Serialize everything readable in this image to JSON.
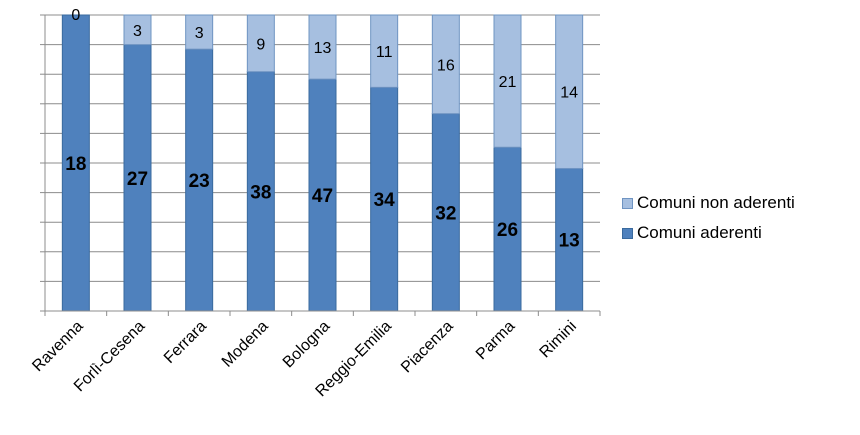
{
  "chart_data": {
    "type": "bar",
    "stacked": "percent",
    "categories": [
      "Ravenna",
      "Forlì-Cesena",
      "Ferrara",
      "Modena",
      "Bologna",
      "Reggio-Emilia",
      "Piacenza",
      "Parma",
      "Rimini"
    ],
    "series": [
      {
        "name": "Comuni aderenti",
        "values": [
          18,
          27,
          23,
          38,
          47,
          34,
          32,
          26,
          13
        ],
        "color": "#4f81bd",
        "stroke": "#3a6a9e"
      },
      {
        "name": "Comuni non aderenti",
        "values": [
          0,
          3,
          3,
          9,
          13,
          11,
          16,
          21,
          14
        ],
        "color": "#a6bfe0",
        "stroke": "#6f94c2"
      }
    ],
    "ylim": [
      0,
      100
    ],
    "grid": true,
    "legend": "right"
  }
}
